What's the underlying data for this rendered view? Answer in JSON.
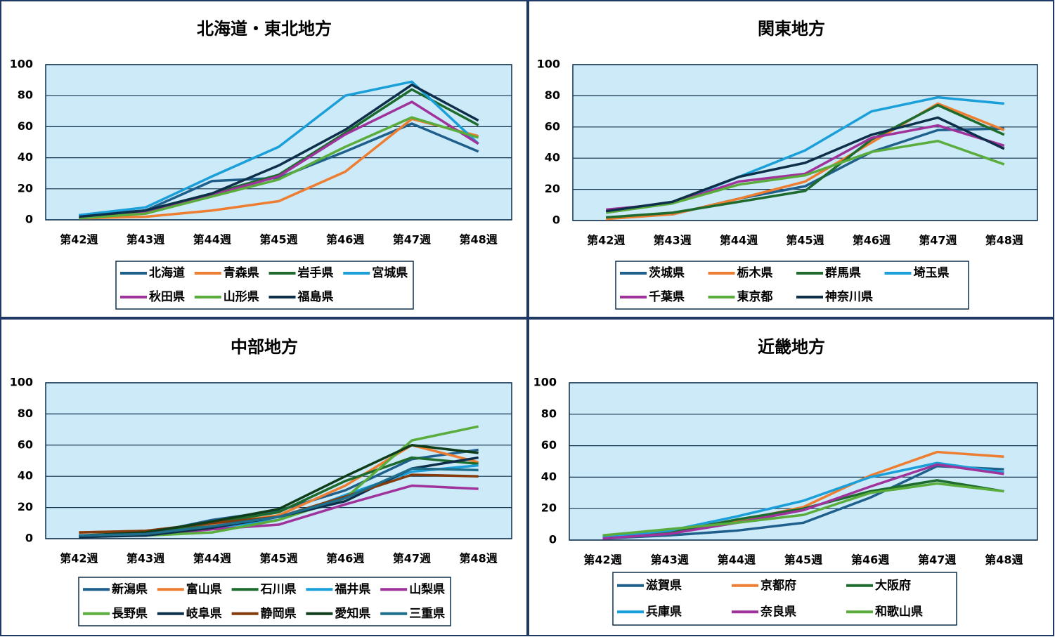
{
  "chart_data": [
    {
      "type": "line",
      "title": "北海道・東北地方",
      "categories": [
        "第42週",
        "第43週",
        "第44週",
        "第45週",
        "第46週",
        "第47週",
        "第48週"
      ],
      "ylim": [
        0,
        100
      ],
      "yticks": [
        0,
        20,
        40,
        60,
        80,
        100
      ],
      "grid": true,
      "legend": "bottom",
      "series": [
        {
          "name": "北海道",
          "color": "#1f5f8b",
          "values": [
            3,
            6,
            25,
            27,
            44,
            62,
            44
          ]
        },
        {
          "name": "青森県",
          "color": "#ed7d31",
          "values": [
            1,
            2,
            6,
            12,
            31,
            65,
            54
          ]
        },
        {
          "name": "岩手県",
          "color": "#1e6b2e",
          "values": [
            1,
            6,
            17,
            29,
            56,
            84,
            61
          ]
        },
        {
          "name": "宮城県",
          "color": "#1a9fd9",
          "values": [
            3,
            8,
            28,
            47,
            80,
            89,
            49
          ]
        },
        {
          "name": "秋田県",
          "color": "#a0339b",
          "values": [
            1,
            5,
            16,
            28,
            55,
            76,
            49
          ]
        },
        {
          "name": "山形県",
          "color": "#5aad3c",
          "values": [
            1,
            4,
            15,
            26,
            47,
            66,
            53
          ]
        },
        {
          "name": "福島県",
          "color": "#0e2f4a",
          "values": [
            2,
            6,
            17,
            35,
            58,
            87,
            64
          ]
        }
      ]
    },
    {
      "type": "line",
      "title": "関東地方",
      "categories": [
        "第42週",
        "第43週",
        "第44週",
        "第45週",
        "第46週",
        "第47週",
        "第48週"
      ],
      "ylim": [
        0,
        100
      ],
      "yticks": [
        0,
        20,
        40,
        60,
        80,
        100
      ],
      "grid": true,
      "legend": "bottom",
      "series": [
        {
          "name": "茨城県",
          "color": "#1f5f8b",
          "values": [
            2,
            4,
            14,
            22,
            44,
            58,
            59
          ]
        },
        {
          "name": "栃木県",
          "color": "#ed7d31",
          "values": [
            1,
            4,
            14,
            25,
            50,
            75,
            58
          ]
        },
        {
          "name": "群馬県",
          "color": "#1e6b2e",
          "values": [
            2,
            5,
            12,
            19,
            52,
            74,
            55
          ]
        },
        {
          "name": "埼玉県",
          "color": "#1a9fd9",
          "values": [
            6,
            11,
            28,
            45,
            70,
            79,
            75
          ]
        },
        {
          "name": "千葉県",
          "color": "#a0339b",
          "values": [
            7,
            11,
            25,
            30,
            53,
            61,
            48
          ]
        },
        {
          "name": "東京都",
          "color": "#5aad3c",
          "values": [
            5,
            11,
            23,
            29,
            44,
            51,
            36
          ]
        },
        {
          "name": "神奈川県",
          "color": "#0e2f4a",
          "values": [
            6,
            12,
            28,
            37,
            55,
            66,
            46
          ]
        }
      ]
    },
    {
      "type": "line",
      "title": "中部地方",
      "categories": [
        "第42週",
        "第43週",
        "第44週",
        "第45週",
        "第46週",
        "第47週",
        "第48週"
      ],
      "ylim": [
        0,
        100
      ],
      "yticks": [
        0,
        20,
        40,
        60,
        80,
        100
      ],
      "grid": true,
      "legend": "bottom",
      "series": [
        {
          "name": "新潟県",
          "color": "#1f5f8b",
          "values": [
            2,
            3,
            12,
            18,
            31,
            51,
            57
          ]
        },
        {
          "name": "富山県",
          "color": "#ed7d31",
          "values": [
            4,
            5,
            9,
            15,
            34,
            60,
            49
          ]
        },
        {
          "name": "石川県",
          "color": "#1e6b2e",
          "values": [
            1,
            3,
            10,
            17,
            37,
            52,
            48
          ]
        },
        {
          "name": "福井県",
          "color": "#1a9fd9",
          "values": [
            2,
            3,
            7,
            12,
            28,
            43,
            47
          ]
        },
        {
          "name": "山梨県",
          "color": "#a0339b",
          "values": [
            2,
            2,
            6,
            9,
            22,
            34,
            32
          ]
        },
        {
          "name": "長野県",
          "color": "#5aad3c",
          "values": [
            2,
            2,
            4,
            12,
            26,
            63,
            72
          ]
        },
        {
          "name": "岐阜県",
          "color": "#0e2f4a",
          "values": [
            1,
            2,
            7,
            14,
            24,
            45,
            52
          ]
        },
        {
          "name": "静岡県",
          "color": "#843c0c",
          "values": [
            4,
            5,
            10,
            14,
            27,
            41,
            40
          ]
        },
        {
          "name": "愛知県",
          "color": "#0f3d1a",
          "values": [
            2,
            4,
            11,
            19,
            40,
            60,
            55
          ]
        },
        {
          "name": "三重県",
          "color": "#1f6e8c",
          "values": [
            2,
            3,
            8,
            14,
            26,
            45,
            44
          ]
        }
      ]
    },
    {
      "type": "line",
      "title": "近畿地方",
      "categories": [
        "第42週",
        "第43週",
        "第44週",
        "第45週",
        "第46週",
        "第47週",
        "第48週"
      ],
      "ylim": [
        0,
        100
      ],
      "yticks": [
        0,
        20,
        40,
        60,
        80,
        100
      ],
      "grid": true,
      "legend": "bottom",
      "series": [
        {
          "name": "滋賀県",
          "color": "#1f5f8b",
          "values": [
            1,
            3,
            6,
            11,
            27,
            47,
            45
          ]
        },
        {
          "name": "京都府",
          "color": "#ed7d31",
          "values": [
            2,
            4,
            12,
            21,
            41,
            56,
            53
          ]
        },
        {
          "name": "大阪府",
          "color": "#1e6b2e",
          "values": [
            2,
            5,
            13,
            20,
            31,
            38,
            31
          ]
        },
        {
          "name": "兵庫県",
          "color": "#1a9fd9",
          "values": [
            2,
            6,
            15,
            25,
            40,
            49,
            43
          ]
        },
        {
          "name": "奈良県",
          "color": "#a0339b",
          "values": [
            1,
            4,
            11,
            19,
            34,
            48,
            42
          ]
        },
        {
          "name": "和歌山県",
          "color": "#5aad3c",
          "values": [
            3,
            7,
            11,
            16,
            30,
            36,
            31
          ]
        }
      ]
    }
  ]
}
